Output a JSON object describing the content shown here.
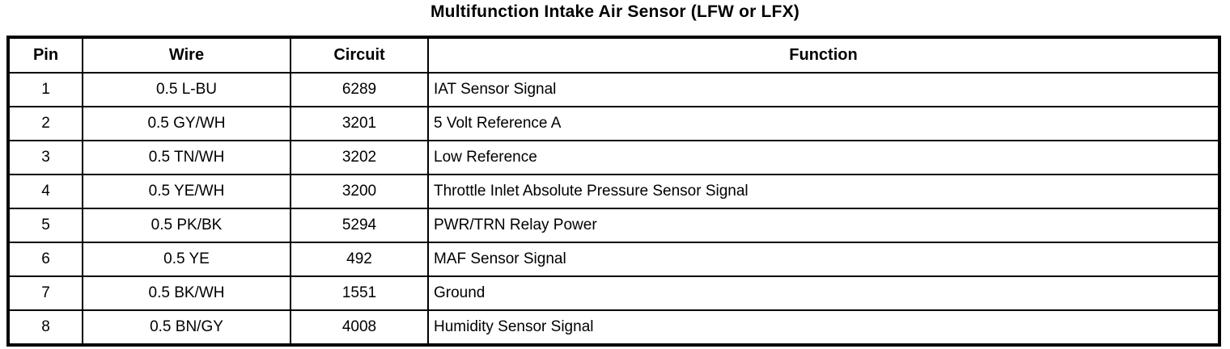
{
  "title": "Multifunction Intake Air Sensor (LFW or LFX)",
  "colors": {
    "text": "#000000",
    "border": "#000000",
    "background": "#ffffff"
  },
  "table": {
    "headers": {
      "pin": "Pin",
      "wire": "Wire",
      "circuit": "Circuit",
      "function": "Function"
    },
    "rows": [
      {
        "pin": "1",
        "wire": "0.5 L-BU",
        "circuit": "6289",
        "function": "IAT Sensor Signal"
      },
      {
        "pin": "2",
        "wire": "0.5 GY/WH",
        "circuit": "3201",
        "function": "5 Volt Reference A"
      },
      {
        "pin": "3",
        "wire": "0.5 TN/WH",
        "circuit": "3202",
        "function": "Low Reference"
      },
      {
        "pin": "4",
        "wire": "0.5 YE/WH",
        "circuit": "3200",
        "function": "Throttle Inlet Absolute Pressure Sensor Signal"
      },
      {
        "pin": "5",
        "wire": "0.5 PK/BK",
        "circuit": "5294",
        "function": "PWR/TRN Relay Power"
      },
      {
        "pin": "6",
        "wire": "0.5 YE",
        "circuit": "492",
        "function": "MAF Sensor Signal"
      },
      {
        "pin": "7",
        "wire": "0.5 BK/WH",
        "circuit": "1551",
        "function": "Ground"
      },
      {
        "pin": "8",
        "wire": "0.5 BN/GY",
        "circuit": "4008",
        "function": "Humidity Sensor Signal"
      }
    ]
  }
}
